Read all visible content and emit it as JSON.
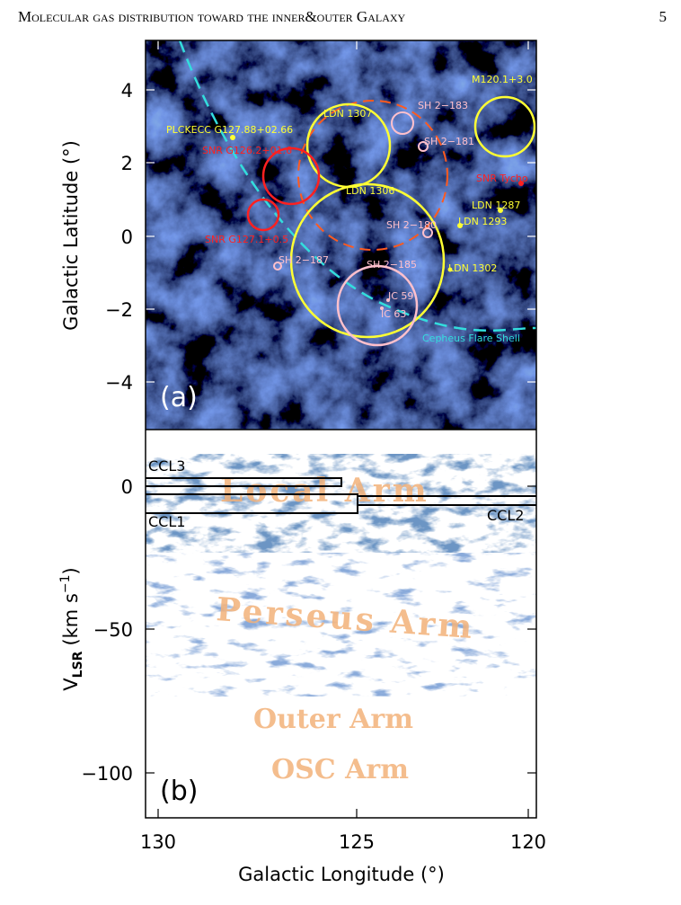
{
  "header": {
    "title": "Molecular gas distribution toward the inner&outer Galaxy",
    "page": "5"
  },
  "figure": {
    "panel_a": {
      "label": "(a)",
      "y_axis": {
        "title": "Galactic Latitude (°)",
        "ticks": [
          "4",
          "2",
          "0",
          "−2",
          "−4"
        ]
      },
      "annotations": [
        "PLCKECC G127.88+02.66",
        "LDN 1307",
        "SH 2−183",
        "M120.1+3.0",
        "SNR G126.2+01.6",
        "SH 2−181",
        "SNR Tycho",
        "LDN 1306",
        "LDN 1287",
        "LDN 1293",
        "SH 2−180",
        "SNR G127.1+0.5",
        "SH 2−187",
        "SH 2−185",
        "LDN 1302",
        "IC 59",
        "IC 63",
        "Cepheus Flare Shell"
      ]
    },
    "panel_b": {
      "label": "(b)",
      "y_axis": {
        "title_main": "V",
        "title_sub": "LSR",
        "title_unit": "(km s",
        "title_sup": "−1",
        "title_close": ")",
        "ticks": [
          "0",
          "−50",
          "−100"
        ]
      },
      "annotations": [
        "CCL3",
        "CCL1",
        "CCL2",
        "Local Arm",
        "Perseus Arm",
        "Outer Arm",
        "OSC Arm"
      ]
    },
    "x_axis": {
      "title": "Galactic Longitude (°)",
      "ticks": [
        "130",
        "125",
        "120"
      ]
    }
  }
}
